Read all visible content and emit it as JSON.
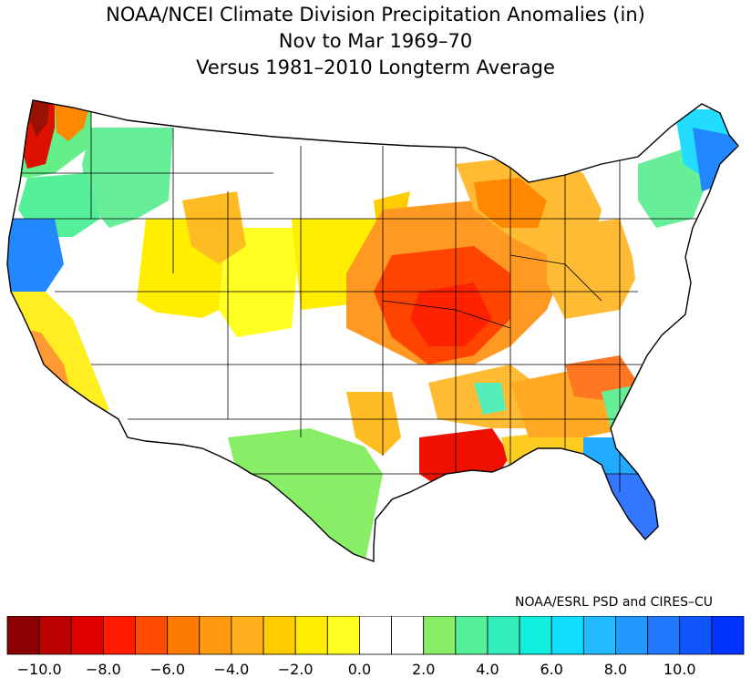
{
  "title": {
    "line1": "NOAA/NCEI Climate Division Precipitation Anomalies (in)",
    "line2": "Nov to Mar 1969–70",
    "line3": "Versus 1981–2010 Longterm Average"
  },
  "credit": "NOAA/ESRL PSD and CIRES–CU",
  "legend": {
    "colors": [
      "#8b0000",
      "#bb0000",
      "#e00000",
      "#ff1a00",
      "#ff4a00",
      "#ff7a00",
      "#ff9a10",
      "#ffb01a",
      "#ffcc00",
      "#ffee00",
      "#ffff22",
      "#ffffff",
      "#ffffff",
      "#88ee66",
      "#55ee99",
      "#33eebb",
      "#11eedd",
      "#11ddff",
      "#22bbff",
      "#2299ff",
      "#2277ff",
      "#1155ff",
      "#0033ff"
    ],
    "tick_labels": [
      "−10.0",
      "−8.0",
      "−6.0",
      "−4.0",
      "−2.0",
      "0.0",
      "2.0",
      "4.0",
      "6.0",
      "8.0",
      "10.0"
    ]
  },
  "map": {
    "region": "contiguous-united-states",
    "variable": "precipitation-anomaly",
    "units": "in"
  }
}
